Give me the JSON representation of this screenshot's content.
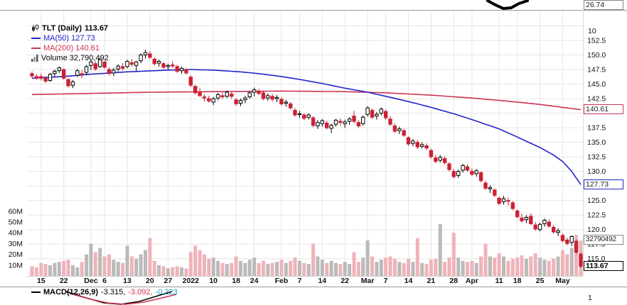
{
  "colors": {
    "up_fill": "#ffffff",
    "candle_stroke": "#000000",
    "down": "#cc2134",
    "ma50": "#2323cc",
    "ma200": "#cc3352",
    "vol_up": "#bababa",
    "vol_down": "#efb3b9",
    "grid": "#e6e6e6",
    "axis_text": "#111111",
    "macd_line": "#000000",
    "macd_signal": "#cc3352",
    "macd_hist": "#0f9cc4"
  },
  "top_panel": {
    "boxed_value": "26.74",
    "tick_label": "10"
  },
  "main_panel": {
    "legend": {
      "symbol": "TLT (Daily)",
      "last": "113.67",
      "ma50": "MA(50) 127.73",
      "ma200": "MA(200) 140.61",
      "volume": "Volume 32,790,492"
    },
    "axis_boxes": {
      "ma200": "140.61",
      "ma50": "127.73",
      "volume": "32790492",
      "last": "113.67"
    }
  },
  "macd_panel": {
    "label": "MACD(12,26,9)",
    "value_macd": "-3.315,",
    "value_signal": "-3.092,",
    "value_hist": "-0.223",
    "tick_label": "1"
  },
  "chart_data": {
    "type": "candlestick",
    "title": "TLT (Daily)",
    "last_close": 113.67,
    "ma50_current": 127.73,
    "ma200_current": 140.61,
    "volume_current": 32790492,
    "price_axis_range": [
      113,
      157.5
    ],
    "legend_position": "top-left",
    "grid": true,
    "x_ticks": [
      [
        "15",
        2,
        0
      ],
      [
        "22",
        7,
        0
      ],
      [
        "Dec",
        13,
        1
      ],
      [
        "6",
        16,
        0
      ],
      [
        "13",
        21,
        0
      ],
      [
        "20",
        26,
        0
      ],
      [
        "27",
        30,
        0
      ],
      [
        "2022",
        35,
        1
      ],
      [
        "10",
        40,
        0
      ],
      [
        "18",
        45,
        0
      ],
      [
        "24",
        49,
        0
      ],
      [
        "Feb",
        55,
        1
      ],
      [
        "7",
        59,
        0
      ],
      [
        "14",
        64,
        0
      ],
      [
        "22",
        69,
        0
      ],
      [
        "Mar",
        74,
        1
      ],
      [
        "7",
        78,
        0
      ],
      [
        "14",
        83,
        0
      ],
      [
        "21",
        88,
        0
      ],
      [
        "28",
        93,
        0
      ],
      [
        "Apr",
        97,
        1
      ],
      [
        "11",
        103,
        0
      ],
      [
        "18",
        107,
        0
      ],
      [
        "25",
        112,
        0
      ],
      [
        "May",
        117,
        1
      ]
    ],
    "grid_values": [
      155.0,
      152.5,
      150.0,
      147.5,
      145.0,
      142.5,
      140.0,
      137.5,
      135.0,
      132.5,
      130.0,
      127.5,
      125.0,
      122.5,
      120.0,
      117.5,
      115.0,
      112.5
    ],
    "price_tick_labels": [
      [
        152.5,
        "152.5"
      ],
      [
        150.0,
        "150.0"
      ],
      [
        147.5,
        "147.5"
      ],
      [
        145.0,
        "145.0"
      ],
      [
        142.5,
        "142.5"
      ],
      [
        137.5,
        "137.5"
      ],
      [
        135.0,
        "135.0"
      ],
      [
        132.5,
        "132.5"
      ],
      [
        130.0,
        "130.0"
      ],
      [
        125.0,
        "125.0"
      ],
      [
        122.5,
        "122.5"
      ],
      [
        120.0,
        "120.0"
      ],
      [
        117.5,
        "117.5"
      ],
      [
        115.0,
        "115.0"
      ]
    ],
    "vol_ticks": [
      [
        "60M",
        60
      ],
      [
        "50M",
        50
      ],
      [
        "40M",
        40
      ],
      [
        "30M",
        30
      ],
      [
        "20M",
        20
      ],
      [
        "10M",
        10
      ]
    ],
    "columns": [
      "open",
      "high",
      "low",
      "close",
      "volume_millions"
    ],
    "candles": [
      [
        146.8,
        147.2,
        146.1,
        146.4,
        9
      ],
      [
        146.3,
        146.7,
        145.7,
        146.0,
        8
      ],
      [
        146.3,
        146.8,
        145.6,
        146.0,
        12
      ],
      [
        146.0,
        146.4,
        145.2,
        145.5,
        11
      ],
      [
        145.6,
        146.9,
        145.4,
        146.7,
        10
      ],
      [
        146.8,
        147.5,
        146.3,
        147.2,
        12
      ],
      [
        147.3,
        148.0,
        146.9,
        147.8,
        13
      ],
      [
        147.5,
        147.7,
        145.8,
        146.0,
        14
      ],
      [
        145.8,
        146.0,
        144.4,
        144.7,
        15
      ],
      [
        144.8,
        145.7,
        144.3,
        145.4,
        10
      ],
      [
        146.5,
        147.6,
        146.2,
        147.3,
        8
      ],
      [
        146.8,
        147.4,
        146.0,
        146.6,
        13
      ],
      [
        147.0,
        148.3,
        146.5,
        148.0,
        20
      ],
      [
        148.2,
        149.1,
        147.4,
        148.8,
        30
      ],
      [
        148.5,
        148.9,
        147.3,
        147.6,
        22
      ],
      [
        148.0,
        149.5,
        147.8,
        149.2,
        26
      ],
      [
        148.8,
        149.0,
        147.6,
        147.9,
        18
      ],
      [
        147.5,
        147.9,
        146.5,
        146.8,
        20
      ],
      [
        146.9,
        147.8,
        146.4,
        147.4,
        15
      ],
      [
        147.6,
        148.4,
        147.2,
        148.1,
        13
      ],
      [
        148.0,
        148.6,
        147.3,
        147.7,
        12
      ],
      [
        148.0,
        149.2,
        147.7,
        148.9,
        28
      ],
      [
        148.7,
        149.3,
        148.0,
        148.4,
        18
      ],
      [
        148.2,
        149.0,
        147.2,
        148.8,
        16
      ],
      [
        149.0,
        150.3,
        148.6,
        150.0,
        20
      ],
      [
        150.0,
        150.9,
        149.4,
        150.4,
        24
      ],
      [
        150.2,
        150.7,
        149.3,
        149.6,
        35
      ],
      [
        149.3,
        149.6,
        148.2,
        148.5,
        14
      ],
      [
        148.6,
        149.2,
        148.0,
        148.9,
        10
      ],
      [
        148.5,
        148.8,
        147.6,
        147.9,
        9
      ],
      [
        148.0,
        148.5,
        147.4,
        148.2,
        7
      ],
      [
        148.3,
        148.9,
        147.8,
        148.1,
        8
      ],
      [
        148.0,
        148.3,
        146.9,
        147.2,
        9
      ],
      [
        147.3,
        148.0,
        146.8,
        147.7,
        8
      ],
      [
        147.5,
        147.8,
        146.6,
        146.9,
        7
      ],
      [
        146.2,
        146.5,
        144.5,
        144.8,
        22
      ],
      [
        144.6,
        144.9,
        143.2,
        143.5,
        28
      ],
      [
        143.6,
        144.3,
        142.8,
        143.0,
        24
      ],
      [
        142.8,
        143.3,
        142.0,
        142.6,
        20
      ],
      [
        142.5,
        143.0,
        141.8,
        142.1,
        16
      ],
      [
        141.9,
        142.8,
        141.4,
        142.5,
        17
      ],
      [
        142.6,
        143.5,
        142.2,
        143.2,
        14
      ],
      [
        143.0,
        143.6,
        142.4,
        142.8,
        12
      ],
      [
        142.9,
        143.9,
        142.6,
        143.6,
        11
      ],
      [
        143.3,
        143.7,
        142.5,
        142.9,
        12
      ],
      [
        142.3,
        142.6,
        141.3,
        141.6,
        18
      ],
      [
        141.7,
        142.5,
        141.2,
        142.2,
        14
      ],
      [
        142.3,
        143.0,
        141.7,
        142.6,
        12
      ],
      [
        142.8,
        143.8,
        142.5,
        143.5,
        15
      ],
      [
        143.6,
        144.4,
        142.9,
        144.0,
        17
      ],
      [
        143.8,
        144.2,
        143.1,
        143.4,
        12
      ],
      [
        143.5,
        143.9,
        142.2,
        142.5,
        14
      ],
      [
        142.6,
        143.4,
        142.1,
        143.0,
        11
      ],
      [
        142.9,
        143.3,
        142.0,
        142.4,
        12
      ],
      [
        142.5,
        143.1,
        141.9,
        142.7,
        13
      ],
      [
        142.4,
        142.7,
        141.3,
        141.6,
        15
      ],
      [
        141.7,
        142.3,
        141.1,
        141.9,
        12
      ],
      [
        141.6,
        141.9,
        140.6,
        140.9,
        14
      ],
      [
        140.5,
        140.9,
        139.4,
        139.7,
        17
      ],
      [
        139.8,
        140.4,
        139.2,
        139.9,
        14
      ],
      [
        139.7,
        140.0,
        138.8,
        139.1,
        12
      ],
      [
        139.3,
        140.0,
        138.9,
        139.7,
        11
      ],
      [
        139.2,
        139.5,
        137.6,
        137.9,
        30
      ],
      [
        137.8,
        138.8,
        137.3,
        138.4,
        18
      ],
      [
        138.2,
        139.0,
        137.7,
        138.7,
        15
      ],
      [
        138.3,
        138.7,
        137.2,
        137.5,
        12
      ],
      [
        137.4,
        138.2,
        136.6,
        137.9,
        14
      ],
      [
        138.1,
        139.0,
        137.7,
        138.8,
        12
      ],
      [
        138.6,
        139.1,
        137.9,
        138.4,
        11
      ],
      [
        138.2,
        138.9,
        137.5,
        138.5,
        13
      ],
      [
        138.6,
        139.3,
        138.0,
        139.0,
        11
      ],
      [
        139.5,
        140.4,
        138.2,
        138.6,
        22
      ],
      [
        138.4,
        138.8,
        137.5,
        137.8,
        13
      ],
      [
        138.2,
        139.6,
        137.9,
        139.3,
        17
      ],
      [
        139.8,
        141.2,
        139.4,
        140.9,
        33
      ],
      [
        140.5,
        140.8,
        139.0,
        139.3,
        18
      ],
      [
        139.5,
        140.2,
        138.9,
        139.8,
        13
      ],
      [
        140.0,
        141.0,
        139.6,
        140.7,
        15
      ],
      [
        140.3,
        140.6,
        138.9,
        139.2,
        17
      ],
      [
        139.0,
        139.5,
        137.8,
        138.1,
        18
      ],
      [
        137.8,
        138.2,
        136.6,
        136.9,
        16
      ],
      [
        137.0,
        137.7,
        136.4,
        137.3,
        13
      ],
      [
        137.0,
        137.3,
        135.9,
        136.2,
        12
      ],
      [
        135.8,
        136.0,
        134.4,
        134.7,
        16
      ],
      [
        134.8,
        135.6,
        134.3,
        135.2,
        13
      ],
      [
        135.0,
        135.4,
        133.8,
        134.2,
        35
      ],
      [
        134.3,
        135.0,
        133.9,
        134.6,
        12
      ],
      [
        134.4,
        134.8,
        133.6,
        134.0,
        11
      ],
      [
        133.6,
        133.9,
        132.2,
        132.5,
        15
      ],
      [
        132.3,
        132.8,
        131.4,
        131.7,
        16
      ],
      [
        131.9,
        132.8,
        131.5,
        132.4,
        48
      ],
      [
        132.2,
        132.6,
        131.2,
        131.5,
        13
      ],
      [
        131.3,
        131.6,
        130.0,
        130.3,
        17
      ],
      [
        130.0,
        130.4,
        128.8,
        129.1,
        40
      ],
      [
        129.3,
        130.3,
        128.9,
        130.0,
        17
      ],
      [
        130.2,
        131.3,
        129.8,
        131.0,
        14
      ],
      [
        130.8,
        131.2,
        129.9,
        130.2,
        13
      ],
      [
        130.0,
        130.5,
        129.2,
        129.5,
        14
      ],
      [
        129.6,
        130.4,
        129.1,
        130.1,
        12
      ],
      [
        129.8,
        130.0,
        128.1,
        128.4,
        18
      ],
      [
        128.0,
        128.4,
        126.8,
        127.1,
        30
      ],
      [
        127.0,
        127.6,
        126.3,
        127.2,
        18
      ],
      [
        126.8,
        127.1,
        125.6,
        125.9,
        17
      ],
      [
        125.4,
        125.7,
        124.2,
        124.5,
        21
      ],
      [
        124.8,
        125.8,
        124.3,
        125.3,
        18
      ],
      [
        125.0,
        125.5,
        124.1,
        124.9,
        14
      ],
      [
        124.6,
        124.9,
        123.3,
        123.6,
        16
      ],
      [
        123.2,
        123.5,
        121.9,
        122.2,
        17
      ],
      [
        122.0,
        122.7,
        121.2,
        121.5,
        19
      ],
      [
        121.7,
        122.5,
        121.1,
        122.1,
        16
      ],
      [
        122.3,
        122.8,
        120.8,
        121.0,
        18
      ],
      [
        120.8,
        121.3,
        119.8,
        120.1,
        21
      ],
      [
        120.0,
        121.2,
        119.7,
        120.9,
        17
      ],
      [
        121.0,
        121.9,
        120.5,
        121.6,
        15
      ],
      [
        121.3,
        121.7,
        120.3,
        120.6,
        14
      ],
      [
        120.4,
        120.8,
        119.3,
        119.6,
        16
      ],
      [
        119.5,
        120.2,
        118.9,
        119.8,
        18
      ],
      [
        119.0,
        119.4,
        117.8,
        118.1,
        24
      ],
      [
        118.2,
        118.6,
        117.3,
        117.6,
        20
      ],
      [
        117.8,
        119.0,
        117.2,
        118.8,
        26
      ],
      [
        118.0,
        118.3,
        115.8,
        116.1,
        38
      ],
      [
        115.8,
        116.0,
        113.4,
        113.67,
        32.79
      ]
    ],
    "ma50_anchors": [
      [
        0,
        146.0
      ],
      [
        7,
        146.3
      ],
      [
        13,
        146.7
      ],
      [
        21,
        147.1
      ],
      [
        30,
        147.4
      ],
      [
        35,
        147.5
      ],
      [
        40,
        147.4
      ],
      [
        46,
        147.1
      ],
      [
        50,
        146.8
      ],
      [
        55,
        146.3
      ],
      [
        59,
        145.8
      ],
      [
        64,
        145.1
      ],
      [
        69,
        144.3
      ],
      [
        74,
        143.6
      ],
      [
        78,
        142.9
      ],
      [
        83,
        142.0
      ],
      [
        88,
        141.0
      ],
      [
        93,
        139.9
      ],
      [
        97,
        138.9
      ],
      [
        103,
        137.3
      ],
      [
        107,
        135.9
      ],
      [
        112,
        134.1
      ],
      [
        115,
        132.8
      ],
      [
        117,
        131.7
      ],
      [
        119,
        130.0
      ],
      [
        121,
        127.73
      ]
    ],
    "ma200_anchors": [
      [
        0,
        143.2
      ],
      [
        13,
        143.4
      ],
      [
        26,
        143.6
      ],
      [
        40,
        143.7
      ],
      [
        55,
        143.8
      ],
      [
        69,
        143.7
      ],
      [
        78,
        143.5
      ],
      [
        88,
        143.1
      ],
      [
        97,
        142.6
      ],
      [
        103,
        142.2
      ],
      [
        107,
        141.9
      ],
      [
        112,
        141.5
      ],
      [
        117,
        141.0
      ],
      [
        121,
        140.61
      ]
    ],
    "fragments": {
      "top_panel_line": [
        [
          686,
          1
        ],
        [
          697,
          7
        ],
        [
          708,
          12
        ],
        [
          719,
          11
        ],
        [
          730,
          5
        ],
        [
          742,
          1
        ]
      ],
      "macd_line": [
        [
          93,
          411
        ],
        [
          118,
          419
        ],
        [
          146,
          427
        ],
        [
          170,
          429
        ],
        [
          196,
          425
        ],
        [
          222,
          417
        ],
        [
          242,
          411
        ]
      ],
      "macd_signal": [
        [
          99,
          414
        ],
        [
          124,
          421
        ],
        [
          151,
          427
        ],
        [
          176,
          429
        ],
        [
          202,
          426
        ],
        [
          228,
          420
        ],
        [
          248,
          415
        ]
      ]
    }
  }
}
